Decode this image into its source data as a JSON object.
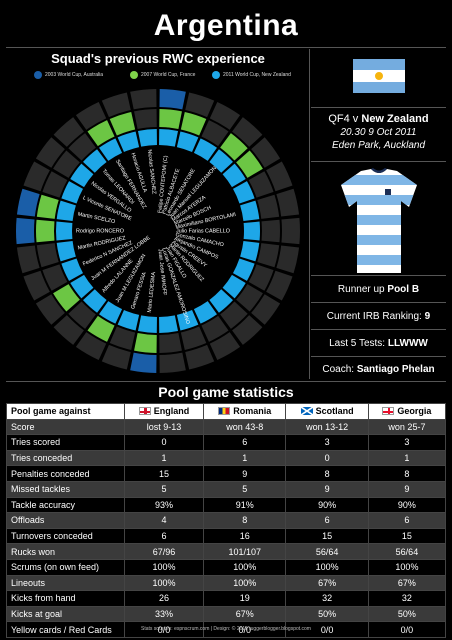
{
  "header": {
    "title": "Argentina"
  },
  "experience": {
    "title": "Squad's previous RWC experience",
    "legend": [
      {
        "label": "2003 World Cup, Australia",
        "color": "#1a5ea8"
      },
      {
        "label": "2007 World Cup, France",
        "color": "#7fd34a"
      },
      {
        "label": "2011 World Cup, New Zealand",
        "color": "#1ea7e8"
      }
    ],
    "ring_colors": {
      "empty": "#2a2a2a",
      "rwc2003": "#1a5ea8",
      "rwc2007": "#6cc644",
      "rwc2011": "#1ea7e8"
    },
    "players": [
      {
        "name": "Felipe CONTEPOMI (C)",
        "rwc2003": true,
        "rwc2007": true
      },
      {
        "name": "Patricio ALBACETE",
        "rwc2003": false,
        "rwc2007": true
      },
      {
        "name": "Leonardo SENATORE",
        "rwc2003": false,
        "rwc2007": false
      },
      {
        "name": "Juan Manuel LEGUIZAMON",
        "rwc2003": false,
        "rwc2007": true
      },
      {
        "name": "Marcos AYERZA",
        "rwc2003": false,
        "rwc2007": true
      },
      {
        "name": "Marcelo BOSCH",
        "rwc2003": false,
        "rwc2007": false
      },
      {
        "name": "Maximiliano BORTOLAMI",
        "rwc2003": false,
        "rwc2007": false
      },
      {
        "name": "Julio Farias CABELLO",
        "rwc2003": false,
        "rwc2007": false
      },
      {
        "name": "Gonzalo CAMACHO",
        "rwc2003": false,
        "rwc2007": false
      },
      {
        "name": "Alejandro CAMPOS",
        "rwc2003": false,
        "rwc2007": false
      },
      {
        "name": "Agustin CREEVY",
        "rwc2003": false,
        "rwc2007": false
      },
      {
        "name": "Martin RODRIGUEZ",
        "rwc2003": false,
        "rwc2007": false
      },
      {
        "name": "Juan FIGALLO",
        "rwc2003": false,
        "rwc2007": false
      },
      {
        "name": "Lucas GONZALEZ AMOROSINO",
        "rwc2003": false,
        "rwc2007": false
      },
      {
        "name": "Juan Jose IMHOFF",
        "rwc2003": false,
        "rwc2007": false
      },
      {
        "name": "Mario LEDESMA",
        "rwc2003": true,
        "rwc2007": true
      },
      {
        "name": "Genaro FESSIA",
        "rwc2003": false,
        "rwc2007": false
      },
      {
        "name": "Juan M LEGUIZAMON",
        "rwc2003": false,
        "rwc2007": true
      },
      {
        "name": "Alfredo LALANNE",
        "rwc2003": false,
        "rwc2007": false
      },
      {
        "name": "Juan M FERNANDEZ LOBBE",
        "rwc2003": false,
        "rwc2007": true
      },
      {
        "name": "Federico N SANCHEZ",
        "rwc2003": false,
        "rwc2007": false
      },
      {
        "name": "Martin RODRIGUEZ",
        "rwc2003": false,
        "rwc2007": false
      },
      {
        "name": "Rodrigo RONCERO",
        "rwc2003": true,
        "rwc2007": true
      },
      {
        "name": "Martin SCELZO",
        "rwc2003": true,
        "rwc2007": true
      },
      {
        "name": "L Vicente SENATORE",
        "rwc2003": false,
        "rwc2007": false
      },
      {
        "name": "Nicolas VERGALLO",
        "rwc2003": false,
        "rwc2007": false
      },
      {
        "name": "Tomas LEONARDI",
        "rwc2003": false,
        "rwc2007": false
      },
      {
        "name": "Santiago FERNANDEZ",
        "rwc2003": false,
        "rwc2007": true
      },
      {
        "name": "Horacio AGULLA",
        "rwc2003": false,
        "rwc2007": true
      },
      {
        "name": "Nicolas SANCHEZ",
        "rwc2003": false,
        "rwc2007": false
      }
    ]
  },
  "match": {
    "fixture_prefix": "QF4 v ",
    "opponent": "New Zealand",
    "datetime": "20.30 9 Oct 2011",
    "venue": "Eden Park, Auckland",
    "flag_colors": {
      "sky": "#74acdf",
      "white": "#ffffff",
      "sun": "#f6b40e"
    }
  },
  "summary": {
    "pool_label": "Runner up ",
    "pool_value": "Pool B",
    "ranking_label": "Current IRB Ranking: ",
    "ranking_value": "9",
    "last5_label": "Last 5 Tests: ",
    "last5_value": "LLWWW",
    "coach_label": "Coach: ",
    "coach_value": "Santiago Phelan"
  },
  "stats": {
    "title": "Pool game statistics",
    "header": "Pool game against",
    "teams": [
      {
        "name": "England",
        "flag": "england"
      },
      {
        "name": "Romania",
        "flag": "romania"
      },
      {
        "name": "Scotland",
        "flag": "scotland"
      },
      {
        "name": "Georgia",
        "flag": "georgia"
      }
    ],
    "rows": [
      {
        "label": "Score",
        "values": [
          "lost 9-13",
          "won 43-8",
          "won 13-12",
          "won 25-7"
        ]
      },
      {
        "label": "Tries scored",
        "values": [
          "0",
          "6",
          "3",
          "3"
        ]
      },
      {
        "label": "Tries conceded",
        "values": [
          "1",
          "1",
          "0",
          "1"
        ]
      },
      {
        "label": "Penalties conceded",
        "values": [
          "15",
          "9",
          "8",
          "8"
        ]
      },
      {
        "label": "Missed tackles",
        "values": [
          "5",
          "5",
          "9",
          "9"
        ]
      },
      {
        "label": "Tackle accuracy",
        "values": [
          "93%",
          "91%",
          "90%",
          "90%"
        ]
      },
      {
        "label": "Offloads",
        "values": [
          "4",
          "8",
          "6",
          "6"
        ]
      },
      {
        "label": "Turnovers conceded",
        "values": [
          "6",
          "16",
          "15",
          "15"
        ]
      },
      {
        "label": "Rucks won",
        "values": [
          "67/96",
          "101/107",
          "56/64",
          "56/64"
        ]
      },
      {
        "label": "Scrums (on own feed)",
        "values": [
          "100%",
          "100%",
          "100%",
          "100%"
        ]
      },
      {
        "label": "Lineouts",
        "values": [
          "100%",
          "100%",
          "67%",
          "67%"
        ]
      },
      {
        "label": "Kicks from hand",
        "values": [
          "26",
          "19",
          "32",
          "32"
        ]
      },
      {
        "label": "Kicks at goal",
        "values": [
          "33%",
          "67%",
          "50%",
          "50%"
        ]
      },
      {
        "label": "Yellow cards / Red Cards",
        "values": [
          "0/0",
          "0/0",
          "0/0",
          "0/0"
        ]
      }
    ]
  },
  "footer": {
    "text": "Stats sources: espnscrum.com | Design: © 2011 ruggerblogger.blogspot.com"
  }
}
